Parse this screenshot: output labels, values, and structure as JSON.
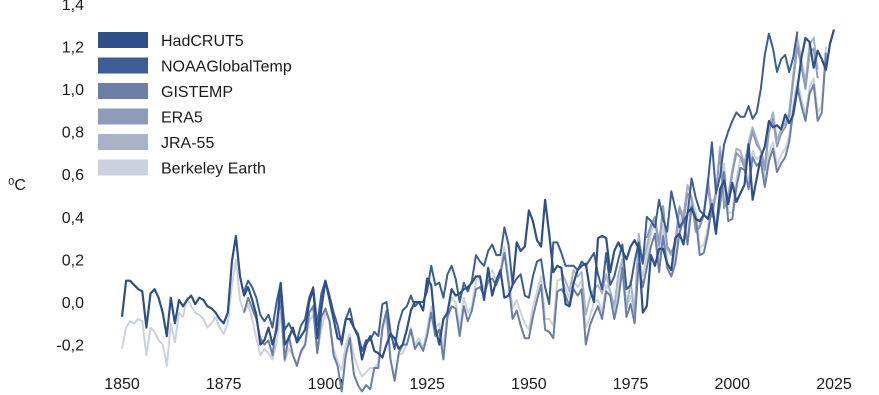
{
  "chart_data": {
    "type": "line",
    "title": "",
    "xlabel": "",
    "ylabel": "⁰C",
    "xlim": [
      1850,
      2023
    ],
    "ylim": [
      -0.3,
      1.4
    ],
    "xticks": [
      "1850",
      "1875",
      "1900",
      "1925",
      "1950",
      "1975",
      "2000",
      "2025"
    ],
    "yticks": [
      "-0,2",
      "0,0",
      "0,2",
      "0,4",
      "0,6",
      "0,8",
      "1,0",
      "1,2",
      "1,4"
    ],
    "grid": false,
    "legend_position": "top-left",
    "series": [
      {
        "name": "HadCRUT5",
        "color": "#2f4f88",
        "x_start": 1850,
        "values": [
          -0.07,
          0.1,
          0.1,
          0.08,
          0.06,
          0.05,
          -0.12,
          0.04,
          0.06,
          0.02,
          -0.05,
          -0.16,
          0.02,
          -0.1,
          0.01,
          -0.02,
          0.01,
          0.03,
          -0.01,
          0.02,
          0.01,
          -0.02,
          -0.03,
          -0.05,
          -0.08,
          -0.1,
          -0.05,
          0.19,
          0.31,
          0.12,
          0.03,
          0.07,
          0.01,
          -0.06,
          -0.2,
          -0.18,
          -0.12,
          -0.2,
          -0.13,
          0.09,
          -0.2,
          -0.17,
          -0.12,
          -0.19,
          -0.16,
          -0.13,
          0.0,
          0.06,
          -0.17,
          -0.03,
          0.1,
          0.01,
          -0.08,
          -0.17,
          -0.18,
          -0.08,
          -0.08,
          -0.12,
          -0.16,
          -0.27,
          -0.2,
          -0.16,
          -0.23,
          -0.24,
          -0.26,
          -0.2,
          -0.15,
          -0.17,
          -0.22,
          -0.2,
          -0.13,
          -0.04,
          0.0,
          0.0,
          -0.04,
          0.11,
          0.08,
          -0.12,
          -0.2,
          -0.08,
          -0.05,
          0.06,
          0.03,
          0.04,
          0.06,
          0.07,
          0.09,
          0.12,
          0.12,
          0.01,
          0.16,
          0.03,
          0.1,
          0.15,
          0.02,
          0.03,
          0.08,
          0.28,
          0.24,
          0.26,
          0.43,
          0.38,
          0.29,
          0.26,
          0.48,
          0.32,
          0.14,
          0.17,
          0.16,
          -0.01,
          -0.02,
          0.09,
          0.15,
          0.17,
          0.18,
          0.06,
          0.0,
          0.3,
          0.31,
          0.3,
          0.14,
          0.24,
          0.28,
          0.24,
          0.2,
          0.26,
          0.29,
          0.25,
          -0.05,
          -0.02,
          0.22,
          0.17,
          0.25,
          0.25,
          0.18,
          0.15,
          0.3,
          0.32,
          0.27,
          0.42,
          0.44,
          0.39,
          0.38,
          0.41,
          0.39,
          0.46,
          0.32,
          0.53,
          0.57,
          0.46,
          0.56,
          0.47,
          0.51,
          0.55,
          0.74,
          0.48,
          0.58,
          0.68,
          0.73,
          0.85,
          0.82,
          0.83,
          0.81,
          0.88,
          0.84,
          0.88,
          1.0,
          1.15,
          1.24,
          1.22,
          1.1,
          1.18,
          1.14,
          1.09,
          1.21,
          1.28
        ]
      },
      {
        "name": "NOAAGlobalTemp",
        "color": "#3c5d96",
        "x_start": 1880,
        "values": [
          0.05,
          0.1,
          0.07,
          0.02,
          -0.06,
          -0.09,
          -0.06,
          -0.12,
          0.0,
          0.09,
          -0.13,
          -0.1,
          -0.14,
          -0.18,
          -0.11,
          -0.08,
          0.02,
          0.07,
          -0.11,
          0.04,
          0.1,
          0.03,
          -0.05,
          -0.11,
          -0.2,
          -0.08,
          -0.03,
          -0.12,
          -0.15,
          -0.23,
          -0.18,
          -0.18,
          -0.14,
          -0.16,
          -0.01,
          0.0,
          -0.14,
          -0.22,
          -0.1,
          -0.04,
          -0.02,
          0.03,
          -0.02,
          0.0,
          0.0,
          0.05,
          0.17,
          0.08,
          0.09,
          0.02,
          0.13,
          0.17,
          0.11,
          0.0,
          0.09,
          0.05,
          0.1,
          0.22,
          0.19,
          0.17,
          0.24,
          0.27,
          0.22,
          0.22,
          0.35,
          0.27,
          0.08,
          0.11,
          0.13,
          0.03,
          0.02,
          0.12,
          0.19,
          0.2,
          0.07,
          -0.01,
          0.28,
          0.28,
          0.23,
          0.17,
          0.17,
          0.17,
          0.15,
          0.19,
          0.17,
          0.2,
          0.23,
          0.13,
          0.06,
          0.23,
          0.08,
          0.12,
          0.2,
          0.27,
          0.06,
          0.08,
          0.19,
          0.28,
          0.18,
          0.4,
          0.38,
          0.35,
          0.48,
          0.39,
          0.33,
          0.52,
          0.44,
          0.35,
          0.38,
          0.41,
          0.58,
          0.49,
          0.43,
          0.41,
          0.56,
          0.75,
          0.51,
          0.59,
          0.74,
          0.8,
          0.85,
          0.89,
          0.87,
          0.87,
          0.92,
          0.86,
          0.89,
          1.0,
          1.16,
          1.26,
          1.19,
          1.08,
          1.14,
          1.16,
          1.08,
          1.15,
          1.27
        ]
      },
      {
        "name": "GISTEMP",
        "color": "#6a7ea6",
        "x_start": 1880,
        "values": [
          -0.05,
          0.02,
          -0.03,
          -0.08,
          -0.17,
          -0.2,
          -0.18,
          -0.25,
          -0.1,
          0.01,
          -0.27,
          -0.16,
          -0.25,
          -0.3,
          -0.23,
          -0.2,
          -0.05,
          -0.02,
          -0.24,
          -0.07,
          -0.03,
          -0.09,
          -0.25,
          -0.3,
          -0.42,
          -0.25,
          -0.17,
          -0.34,
          -0.39,
          -0.42,
          -0.39,
          -0.41,
          -0.31,
          -0.31,
          -0.12,
          -0.04,
          -0.27,
          -0.37,
          -0.24,
          -0.2,
          -0.2,
          -0.13,
          -0.22,
          -0.19,
          -0.23,
          -0.16,
          -0.05,
          -0.16,
          -0.13,
          -0.27,
          -0.07,
          -0.02,
          -0.03,
          -0.16,
          -0.02,
          -0.09,
          -0.04,
          0.06,
          0.07,
          0.03,
          0.1,
          0.11,
          0.08,
          0.13,
          0.23,
          0.09,
          -0.08,
          -0.04,
          -0.11,
          -0.17,
          -0.17,
          -0.07,
          0.01,
          0.08,
          -0.13,
          -0.14,
          -0.17,
          0.05,
          0.06,
          0.03,
          -0.02,
          0.06,
          0.03,
          0.06,
          -0.2,
          -0.11,
          -0.06,
          -0.02,
          -0.08,
          0.05,
          0.03,
          -0.08,
          0.01,
          0.16,
          -0.07,
          -0.01,
          -0.1,
          0.18,
          0.07,
          0.16,
          0.26,
          0.32,
          0.14,
          0.31,
          0.16,
          0.12,
          0.18,
          0.32,
          0.39,
          0.27,
          0.45,
          0.4,
          0.22,
          0.23,
          0.32,
          0.45,
          0.33,
          0.46,
          0.61,
          0.38,
          0.39,
          0.54,
          0.63,
          0.62,
          0.53,
          0.68,
          0.64,
          0.66,
          0.54,
          0.66,
          0.72,
          0.61,
          0.65,
          0.68,
          0.75,
          0.9,
          1.01,
          0.92,
          0.85,
          0.98,
          1.02,
          0.85,
          0.89,
          1.17
        ]
      },
      {
        "name": "ERA5",
        "color": "#8e9cba",
        "x_start": 1979,
        "values": [
          0.3,
          0.36,
          0.4,
          0.27,
          0.45,
          0.26,
          0.23,
          0.28,
          0.44,
          0.38,
          0.51,
          0.49,
          0.33,
          0.35,
          0.41,
          0.55,
          0.4,
          0.51,
          0.71,
          0.44,
          0.48,
          0.6,
          0.7,
          0.68,
          0.63,
          0.72,
          0.8,
          0.74,
          0.71,
          0.62,
          0.8,
          0.86,
          0.73,
          0.79,
          0.82,
          0.87,
          1.04,
          1.2,
          1.1,
          1.0,
          1.17,
          1.19,
          1.05
        ]
      },
      {
        "name": "JRA-55",
        "color": "#a9b3c8",
        "x_start": 1958,
        "values": [
          0.14,
          0.1,
          0.05,
          0.15,
          0.12,
          0.14,
          -0.06,
          0.02,
          0.06,
          0.08,
          0.04,
          0.13,
          0.05,
          -0.02,
          0.13,
          0.2,
          -0.03,
          0.1,
          -0.05,
          0.32,
          0.18,
          0.26,
          0.35,
          0.39,
          0.26,
          0.44,
          0.25,
          0.22,
          0.27,
          0.45,
          0.4,
          0.55,
          0.49,
          0.34,
          0.36,
          0.42,
          0.58,
          0.43,
          0.52,
          0.73,
          0.46,
          0.5,
          0.62,
          0.72,
          0.71,
          0.65,
          0.75,
          0.82,
          0.76,
          0.71,
          0.64,
          0.82,
          0.89,
          0.76,
          0.81,
          0.84,
          0.89,
          1.07,
          1.24,
          1.13,
          1.03,
          1.21,
          1.24,
          1.09
        ]
      },
      {
        "name": "Berkeley Earth",
        "color": "#ccd2dd",
        "x_start": 1850,
        "values": [
          -0.22,
          -0.12,
          -0.09,
          -0.1,
          -0.08,
          -0.09,
          -0.25,
          -0.12,
          -0.14,
          -0.18,
          -0.2,
          -0.3,
          -0.1,
          -0.19,
          -0.05,
          -0.07,
          0.02,
          -0.02,
          -0.05,
          -0.06,
          -0.08,
          -0.12,
          -0.1,
          -0.07,
          -0.12,
          -0.15,
          -0.1,
          0.08,
          0.2,
          0.01,
          -0.05,
          -0.01,
          -0.08,
          -0.17,
          -0.25,
          -0.22,
          -0.24,
          -0.27,
          -0.19,
          -0.05,
          -0.28,
          -0.22,
          -0.25,
          -0.29,
          -0.24,
          -0.21,
          -0.09,
          -0.06,
          -0.24,
          -0.13,
          -0.05,
          -0.08,
          -0.22,
          -0.28,
          -0.32,
          -0.2,
          -0.15,
          -0.25,
          -0.31,
          -0.35,
          -0.33,
          -0.31,
          -0.31,
          -0.29,
          -0.13,
          -0.07,
          -0.27,
          -0.36,
          -0.25,
          -0.24,
          -0.2,
          -0.12,
          -0.2,
          -0.17,
          -0.22,
          -0.13,
          -0.02,
          -0.12,
          -0.1,
          -0.22,
          -0.04,
          0.02,
          0.0,
          -0.12,
          0.02,
          -0.05,
          -0.02,
          0.1,
          0.12,
          0.06,
          0.12,
          0.15,
          0.1,
          0.15,
          0.26,
          0.12,
          -0.03,
          0.01,
          -0.05,
          -0.1,
          -0.13,
          -0.02,
          0.05,
          0.12,
          -0.08,
          -0.08,
          -0.11,
          0.1,
          0.11,
          0.06,
          0.02,
          0.1,
          0.07,
          0.1,
          -0.12,
          -0.07,
          0.0,
          0.01,
          -0.05,
          0.08,
          0.05,
          -0.05,
          0.05,
          0.2,
          -0.03,
          0.03,
          -0.06,
          0.22,
          0.12,
          0.21,
          0.32,
          0.37,
          0.17,
          0.36,
          0.19,
          0.15,
          0.22,
          0.36,
          0.43,
          0.3,
          0.48,
          0.43,
          0.25,
          0.27,
          0.35,
          0.48,
          0.36,
          0.5,
          0.65,
          0.42,
          0.42,
          0.58,
          0.67,
          0.65,
          0.56,
          0.71,
          0.67,
          0.69,
          0.58,
          0.7,
          0.75,
          0.64,
          0.69,
          0.72,
          0.78,
          0.93,
          1.04,
          0.95,
          0.88,
          1.01,
          1.05,
          0.89,
          0.92,
          1.2
        ]
      }
    ]
  }
}
